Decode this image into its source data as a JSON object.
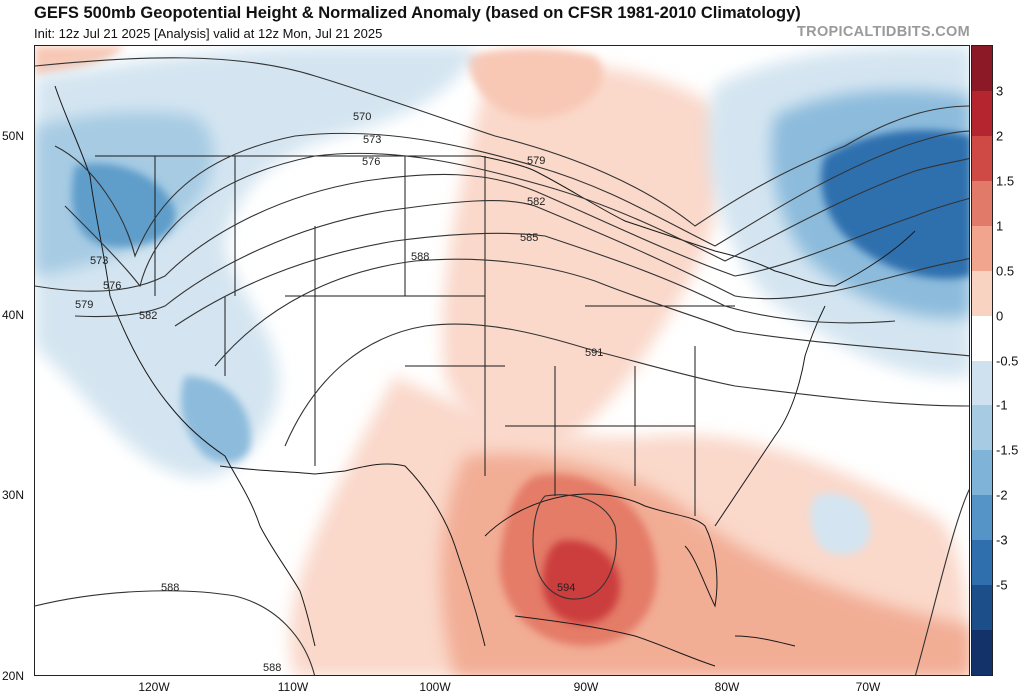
{
  "header": {
    "title": "GEFS 500mb Geopotential Height & Normalized Anomaly (based on CFSR 1981-2010 Climatology)",
    "subtitle": "Init: 12z Jul 21 2025   [Analysis]   valid at 12z Mon, Jul 21 2025",
    "brand": "TROPICALTIDBITS.COM"
  },
  "axes": {
    "lat_labels": [
      "50N",
      "40N",
      "30N",
      "20N"
    ],
    "lon_labels": [
      "120W",
      "110W",
      "100W",
      "90W",
      "80W",
      "70W"
    ]
  },
  "contours": {
    "labels": [
      "570",
      "573",
      "576",
      "579",
      "582",
      "585",
      "588",
      "591",
      "594"
    ]
  },
  "colorbar": {
    "ticks": [
      "3",
      "2",
      "1.5",
      "1",
      "0.5",
      "0",
      "-0.5",
      "-1",
      "-1.5",
      "-2",
      "-3",
      "-5"
    ],
    "colors": [
      "#8b1a26",
      "#b52530",
      "#cf4a45",
      "#e27a6a",
      "#f1a58f",
      "#f9d3c2",
      "#ffffff",
      "#cfe1ee",
      "#a6cbe3",
      "#7fb3d8",
      "#5494c6",
      "#2f6fae",
      "#1c4f8a",
      "#14326a"
    ]
  },
  "map_style": {
    "high_strong": "#d9534b",
    "high_mid": "#ef9b82",
    "high_light": "#fad8ca",
    "low_strong": "#2f6fae",
    "low_mid": "#8cbbdc",
    "low_light": "#d4e5f1",
    "contour_color": "#333333",
    "border_color": "#1a1a1a"
  }
}
